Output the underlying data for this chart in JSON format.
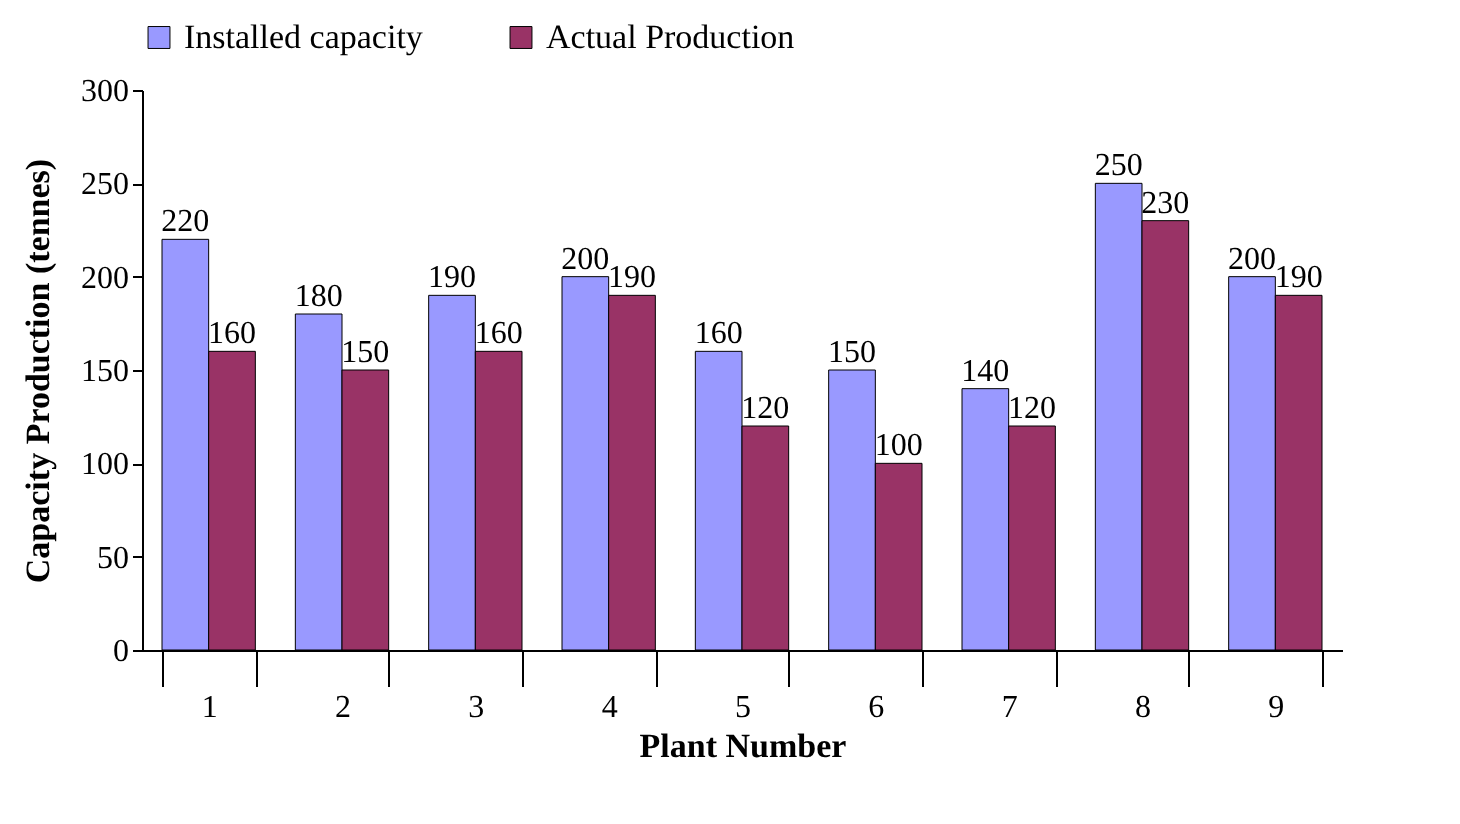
{
  "chart_data": {
    "type": "bar",
    "xlabel": "Plant Number",
    "ylabel": "Capacity Production (tennes)",
    "categories": [
      "1",
      "2",
      "3",
      "4",
      "5",
      "6",
      "7",
      "8",
      "9"
    ],
    "series": [
      {
        "name": "Installed capacity",
        "color": "#9999ff",
        "values": [
          220,
          180,
          190,
          200,
          160,
          150,
          140,
          250,
          200
        ]
      },
      {
        "name": "Actual Production",
        "color": "#993366",
        "values": [
          160,
          150,
          160,
          190,
          120,
          100,
          120,
          230,
          190
        ]
      }
    ],
    "ylim": [
      0,
      300
    ],
    "yticks": [
      0,
      50,
      100,
      150,
      200,
      250,
      300
    ],
    "grid": false,
    "legend": "top",
    "data_labels": true
  }
}
